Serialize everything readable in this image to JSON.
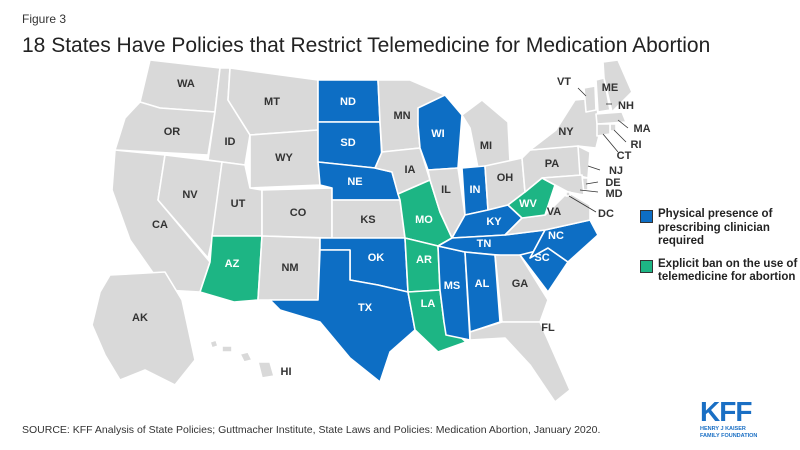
{
  "figure_label": "Figure 3",
  "title": "18 States Have Policies that Restrict Telemedicine for Medication Abortion",
  "colors": {
    "gray": "#d9d9d9",
    "blue": "#0d6ec4",
    "green": "#1db584",
    "border": "#ffffff"
  },
  "legend": [
    {
      "key": "blue",
      "label": "Physical presence of prescribing clinician required"
    },
    {
      "key": "green",
      "label": "Explicit ban on the use of telemedicine for abortion"
    }
  ],
  "states": {
    "WA": "gray",
    "OR": "gray",
    "CA": "gray",
    "ID": "gray",
    "NV": "gray",
    "MT": "gray",
    "WY": "gray",
    "UT": "gray",
    "AZ": "green",
    "CO": "gray",
    "NM": "gray",
    "ND": "blue",
    "SD": "blue",
    "NE": "blue",
    "KS": "gray",
    "OK": "blue",
    "TX": "blue",
    "MN": "gray",
    "IA": "gray",
    "MO": "green",
    "AR": "green",
    "LA": "green",
    "WI": "blue",
    "IL": "gray",
    "MS": "blue",
    "MI": "gray",
    "IN": "blue",
    "KY": "blue",
    "TN": "blue",
    "AL": "blue",
    "OH": "gray",
    "WV": "green",
    "GA": "gray",
    "FL": "gray",
    "SC": "blue",
    "NC": "blue",
    "VA": "gray",
    "PA": "gray",
    "NY": "gray",
    "VT": "gray",
    "NH": "gray",
    "ME": "gray",
    "MA": "gray",
    "RI": "gray",
    "CT": "gray",
    "NJ": "gray",
    "DE": "gray",
    "MD": "gray",
    "DC": "gray",
    "AK": "gray",
    "HI": "gray"
  },
  "source": "SOURCE: KFF Analysis of State Policies; Guttmacher Institute,  State Laws and Policies: Medication Abortion, January 2020.",
  "logo": {
    "mark": "KFF",
    "line1": "HENRY J KAISER",
    "line2": "FAMILY FOUNDATION"
  }
}
